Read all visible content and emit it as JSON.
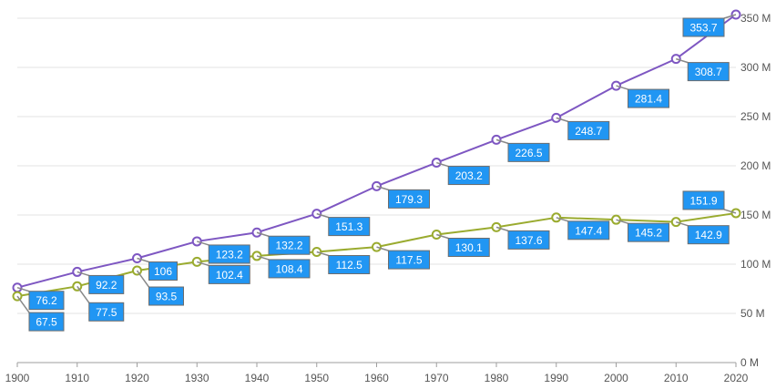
{
  "chart_data": {
    "type": "line",
    "x": [
      1900,
      1910,
      1920,
      1930,
      1940,
      1950,
      1960,
      1970,
      1980,
      1990,
      2000,
      2010,
      2020
    ],
    "xlim": [
      1900,
      2020
    ],
    "x_ticks": [
      "1900",
      "1910",
      "1920",
      "1930",
      "1940",
      "1950",
      "1960",
      "1970",
      "1980",
      "1990",
      "2000",
      "2010",
      "2020"
    ],
    "ylim": [
      0,
      350
    ],
    "y_ticks": [
      0,
      50,
      100,
      150,
      200,
      250,
      300,
      350
    ],
    "y_tick_labels": [
      "0 M",
      "50 M",
      "100 M",
      "150 M",
      "200 M",
      "250 M",
      "300 M",
      "350 M"
    ],
    "y_axis_position": "right",
    "grid": "horizontal",
    "series": [
      {
        "color": "#7e57c2",
        "marker": "open-circle",
        "values": [
          76.2,
          92.2,
          106,
          123.2,
          132.2,
          151.3,
          179.3,
          203.2,
          226.5,
          248.7,
          281.4,
          308.7,
          353.7
        ],
        "labels": [
          "76.2",
          "92.2",
          "106",
          "123.2",
          "132.2",
          "151.3",
          "179.3",
          "203.2",
          "226.5",
          "248.7",
          "281.4",
          "308.7",
          "353.7"
        ]
      },
      {
        "color": "#9aab2f",
        "marker": "open-circle",
        "values": [
          67.5,
          77.5,
          93.5,
          102.4,
          108.4,
          112.5,
          117.5,
          130.1,
          137.6,
          147.4,
          145.2,
          142.9,
          151.9
        ],
        "labels": [
          "67.5",
          "77.5",
          "93.5",
          "102.4",
          "108.4",
          "112.5",
          "117.5",
          "130.1",
          "137.6",
          "147.4",
          "145.2",
          "142.9",
          "151.9"
        ]
      }
    ],
    "data_label_style": {
      "fill": "#2196f3",
      "border": "#6d6d6d",
      "text_color": "#ffffff",
      "connector_color": "#888888"
    },
    "gridline_color": "#e3e3e3",
    "axis_color": "#9e9e9e"
  }
}
